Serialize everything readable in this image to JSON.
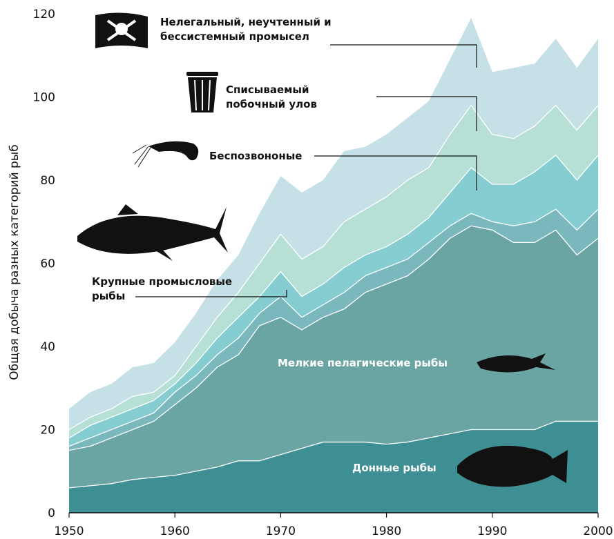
{
  "chart_data": {
    "type": "stacked_area",
    "y_label": "Общая добыча разных категорий рыб",
    "x": [
      1950,
      1952,
      1954,
      1956,
      1958,
      1960,
      1962,
      1964,
      1966,
      1968,
      1970,
      1972,
      1974,
      1976,
      1978,
      1980,
      1982,
      1984,
      1986,
      1988,
      1990,
      1992,
      1994,
      1996,
      1998,
      2000
    ],
    "xlim": [
      1950,
      2000
    ],
    "xticks": [
      1950,
      1960,
      1970,
      1980,
      1990,
      2000
    ],
    "ylim": [
      0,
      120
    ],
    "yticks": [
      0,
      20,
      40,
      60,
      80,
      100,
      120
    ],
    "series": [
      {
        "name": "Донные рыбы",
        "color": "#3d8f94",
        "values": [
          6,
          6.5,
          7,
          8,
          8.5,
          9,
          10,
          11,
          12.5,
          12.5,
          14,
          15.5,
          17,
          17,
          17,
          16.5,
          17,
          18,
          19,
          20,
          20,
          20,
          20,
          22,
          22,
          22
        ]
      },
      {
        "name": "Мелкие пелагические рыбы",
        "color": "#6aa5a3",
        "values": [
          9,
          9.5,
          11,
          12,
          13.5,
          17,
          20,
          24,
          25.5,
          32.5,
          33,
          28.5,
          30,
          32,
          36,
          38.5,
          40,
          43,
          47,
          49,
          48,
          45,
          45,
          46,
          40,
          44
        ]
      },
      {
        "name": "Крупные промысловые рыбы",
        "color": "#7bb8bd",
        "values": [
          1,
          2,
          2,
          2,
          2,
          3,
          3,
          3,
          4,
          3,
          5,
          3,
          3,
          4,
          4,
          4,
          4,
          4,
          3,
          3,
          2,
          4,
          5,
          5,
          6,
          7
        ]
      },
      {
        "name": "Беспозвононые",
        "color": "#86cdd2",
        "values": [
          2,
          3,
          3,
          3,
          3,
          2,
          3,
          4,
          5,
          4,
          6,
          5,
          5,
          6,
          5,
          5,
          6,
          6,
          8,
          11,
          9,
          10,
          12,
          13,
          12,
          13
        ]
      },
      {
        "name": "Списываемый побочный улов",
        "color": "#b6e0d6",
        "values": [
          2,
          2,
          2,
          3,
          2,
          2,
          4,
          5,
          6,
          8,
          9,
          9,
          9,
          11,
          11,
          12,
          13,
          12,
          14,
          15,
          12,
          11,
          11,
          12,
          12,
          12
        ]
      },
      {
        "name": "Нелегальный, неучтенный и бессистемный промысел",
        "color": "#c5e0e6",
        "values": [
          5,
          6,
          6,
          7,
          7,
          8,
          8,
          9,
          9,
          12,
          14,
          16,
          16,
          17,
          15,
          15,
          15,
          16,
          18,
          21,
          15,
          17,
          15,
          16,
          15,
          16
        ]
      }
    ]
  }
}
